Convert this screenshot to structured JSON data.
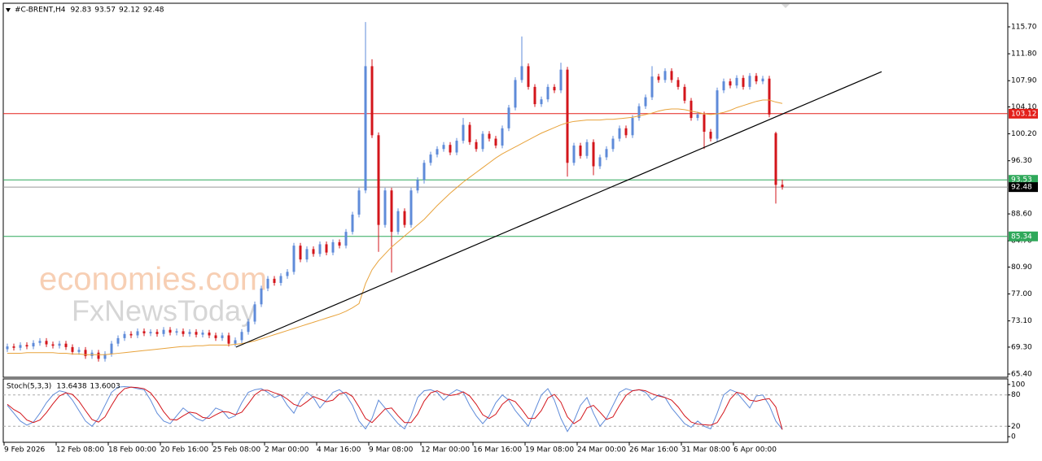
{
  "chart_data": [
    {
      "type": "candlestick",
      "title": "#C-BRENT,H4",
      "header_values": [
        92.83,
        93.57,
        92.12,
        92.48
      ],
      "categories": [
        "9 Feb 2026",
        null,
        null,
        null,
        null,
        null,
        null,
        null,
        "12 Feb 08:00",
        null,
        null,
        null,
        null,
        null,
        null,
        null,
        "18 Feb 00:00",
        null,
        null,
        null,
        null,
        null,
        null,
        null,
        "20 Feb 16:00",
        null,
        null,
        null,
        null,
        null,
        null,
        null,
        "25 Feb 08:00",
        null,
        null,
        null,
        null,
        null,
        null,
        null,
        "2 Mar 00:00",
        null,
        null,
        null,
        null,
        null,
        null,
        null,
        "4 Mar 16:00",
        null,
        null,
        null,
        null,
        null,
        null,
        null,
        "9 Mar 08:00",
        null,
        null,
        null,
        null,
        null,
        null,
        null,
        "12 Mar 00:00",
        null,
        null,
        null,
        null,
        null,
        null,
        null,
        "16 Mar 16:00",
        null,
        null,
        null,
        null,
        null,
        null,
        null,
        "19 Mar 08:00",
        null,
        null,
        null,
        null,
        null,
        null,
        null,
        "24 Mar 00:00",
        null,
        null,
        null,
        null,
        null,
        null,
        null,
        "26 Mar 16:00",
        null,
        null,
        null,
        null,
        null,
        null,
        null,
        "31 Mar 08:00",
        null,
        null,
        null,
        null,
        null,
        null,
        null,
        "6 Apr 00:00",
        null,
        null,
        null,
        null,
        null,
        null,
        null
      ],
      "open": [
        69.0,
        69.4,
        69.2,
        69.6,
        69.4,
        69.9,
        70.2,
        69.7,
        69.5,
        69.8,
        69.3,
        68.6,
        68.9,
        68.0,
        68.5,
        67.6,
        68.3,
        69.8,
        70.6,
        71.2,
        71.0,
        71.6,
        71.3,
        71.5,
        71.2,
        71.8,
        71.4,
        71.6,
        71.2,
        71.5,
        71.1,
        71.4,
        71.0,
        70.6,
        71.0,
        69.8,
        70.3,
        71.5,
        73.0,
        75.5,
        77.8,
        79.2,
        78.6,
        79.6,
        80.2,
        84.0,
        82.0,
        83.5,
        82.8,
        84.2,
        83.0,
        84.5,
        84.0,
        86.0,
        88.5,
        92.0,
        110.0,
        100.0,
        87.0,
        92.0,
        86.0,
        89.0,
        87.0,
        92.0,
        93.5,
        96.0,
        97.2,
        98.0,
        98.6,
        97.5,
        99.2,
        101.5,
        99.0,
        98.0,
        100.2,
        99.5,
        98.5,
        101.0,
        104.0,
        108.0,
        110.0,
        107.0,
        104.5,
        105.2,
        107.0,
        106.5,
        109.5,
        96.0,
        98.5,
        97.0,
        99.0,
        95.5,
        96.8,
        98.0,
        99.5,
        101.0,
        100.0,
        102.5,
        104.2,
        105.5,
        108.5,
        108.0,
        109.3,
        108.0,
        107.0,
        105.0,
        102.5,
        103.0,
        100.5,
        99.5,
        106.5,
        107.8,
        107.2,
        108.3,
        107.0,
        108.6,
        107.8,
        108.2,
        100.3,
        92.83
      ],
      "high": [
        69.8,
        69.8,
        70.0,
        70.0,
        70.3,
        70.6,
        70.6,
        70.1,
        70.2,
        70.2,
        69.7,
        69.3,
        69.3,
        68.9,
        68.9,
        68.7,
        70.2,
        71.0,
        71.6,
        71.6,
        72.0,
        72.0,
        71.9,
        71.9,
        72.2,
        72.2,
        72.0,
        72.0,
        71.9,
        71.9,
        71.8,
        71.8,
        71.4,
        71.4,
        71.4,
        70.7,
        71.9,
        73.4,
        75.9,
        78.2,
        79.6,
        79.6,
        80.0,
        80.6,
        84.4,
        84.4,
        83.9,
        83.9,
        84.6,
        84.6,
        84.9,
        84.9,
        86.4,
        88.9,
        92.4,
        116.4,
        111.0,
        100.4,
        92.4,
        92.4,
        89.4,
        89.4,
        92.4,
        93.9,
        96.4,
        97.6,
        98.4,
        99.0,
        99.0,
        99.6,
        102.5,
        101.9,
        99.4,
        100.6,
        100.6,
        99.9,
        101.4,
        104.4,
        108.4,
        114.3,
        110.4,
        107.4,
        105.6,
        107.4,
        107.4,
        110.5,
        109.9,
        98.9,
        98.9,
        99.4,
        99.4,
        97.2,
        98.4,
        99.9,
        101.4,
        101.4,
        102.9,
        104.6,
        105.9,
        110.0,
        108.9,
        109.7,
        109.7,
        108.4,
        107.4,
        105.4,
        103.4,
        103.4,
        100.9,
        106.9,
        108.2,
        108.2,
        108.7,
        108.7,
        109.0,
        109.0,
        108.6,
        108.6,
        100.5,
        93.57
      ],
      "low": [
        68.6,
        68.8,
        68.8,
        69.0,
        69.0,
        69.5,
        69.3,
        69.1,
        69.1,
        68.9,
        68.2,
        68.2,
        67.6,
        67.6,
        67.2,
        67.2,
        67.9,
        69.4,
        70.2,
        70.6,
        70.6,
        70.9,
        70.9,
        70.8,
        70.8,
        71.0,
        71.0,
        70.8,
        70.8,
        70.7,
        70.7,
        70.6,
        70.2,
        70.2,
        69.4,
        69.4,
        69.9,
        71.1,
        72.6,
        75.1,
        77.4,
        78.2,
        78.2,
        79.2,
        79.8,
        81.6,
        81.6,
        82.4,
        82.4,
        82.6,
        82.6,
        83.6,
        83.6,
        85.6,
        88.1,
        91.6,
        99.6,
        83.1,
        86.6,
        80.1,
        85.6,
        86.6,
        86.6,
        91.6,
        93.0,
        95.6,
        96.8,
        97.6,
        97.1,
        97.1,
        98.8,
        98.6,
        97.6,
        97.6,
        99.1,
        98.1,
        98.1,
        100.6,
        103.6,
        107.6,
        106.6,
        104.1,
        104.1,
        104.8,
        106.1,
        106.1,
        94.0,
        95.6,
        96.6,
        96.6,
        94.2,
        95.1,
        96.4,
        97.6,
        99.1,
        99.6,
        99.6,
        102.1,
        103.8,
        105.1,
        107.6,
        107.6,
        107.6,
        106.6,
        104.6,
        102.1,
        102.1,
        98.0,
        99.1,
        99.1,
        106.1,
        106.8,
        106.8,
        106.6,
        106.6,
        107.4,
        107.4,
        102.6,
        90.1,
        92.12
      ],
      "close": [
        69.4,
        69.2,
        69.6,
        69.4,
        69.9,
        70.2,
        69.7,
        69.5,
        69.8,
        69.3,
        68.6,
        68.9,
        68.0,
        68.5,
        67.6,
        68.3,
        69.8,
        70.6,
        71.2,
        71.0,
        71.6,
        71.3,
        71.5,
        71.2,
        71.8,
        71.4,
        71.6,
        71.2,
        71.5,
        71.1,
        71.4,
        71.0,
        70.6,
        71.0,
        69.8,
        70.3,
        71.5,
        73.0,
        75.5,
        77.8,
        79.2,
        78.6,
        79.6,
        80.2,
        84.0,
        82.0,
        83.5,
        82.8,
        84.2,
        83.0,
        84.5,
        84.0,
        86.0,
        88.5,
        92.0,
        110.0,
        100.0,
        87.0,
        92.0,
        86.0,
        89.0,
        87.0,
        92.0,
        93.5,
        96.0,
        97.2,
        98.0,
        98.6,
        97.5,
        99.2,
        101.5,
        99.0,
        98.0,
        100.2,
        99.5,
        98.5,
        101.0,
        104.0,
        108.0,
        110.0,
        107.0,
        104.5,
        105.2,
        107.0,
        106.5,
        109.5,
        96.0,
        98.5,
        97.0,
        99.0,
        95.5,
        96.8,
        98.0,
        99.5,
        101.0,
        100.0,
        102.5,
        104.2,
        105.5,
        108.5,
        108.0,
        109.3,
        108.0,
        107.0,
        105.0,
        102.5,
        103.0,
        100.5,
        99.5,
        106.5,
        107.8,
        107.2,
        108.3,
        107.0,
        108.6,
        107.8,
        108.2,
        103.0,
        92.8,
        92.48
      ],
      "up_color": "#5f8bd9",
      "down_color": "#d3151b",
      "moving_average": {
        "color": "#e8a33c",
        "values": [
          68.4,
          68.4,
          68.4,
          68.5,
          68.5,
          68.5,
          68.5,
          68.5,
          68.4,
          68.4,
          68.3,
          68.3,
          68.2,
          68.2,
          68.2,
          68.2,
          68.3,
          68.4,
          68.5,
          68.6,
          68.7,
          68.8,
          68.9,
          69.0,
          69.1,
          69.2,
          69.3,
          69.4,
          69.4,
          69.5,
          69.5,
          69.6,
          69.6,
          69.6,
          69.6,
          69.7,
          69.8,
          70.0,
          70.2,
          70.5,
          70.8,
          71.1,
          71.4,
          71.7,
          72.0,
          72.3,
          72.6,
          72.9,
          73.2,
          73.5,
          73.8,
          74.1,
          74.5,
          75.0,
          75.6,
          78.5,
          80.5,
          81.8,
          82.8,
          83.8,
          84.6,
          85.4,
          86.2,
          87.0,
          87.8,
          88.8,
          89.8,
          90.7,
          91.6,
          92.4,
          93.2,
          93.9,
          94.6,
          95.3,
          96.0,
          96.7,
          97.3,
          97.8,
          98.3,
          98.8,
          99.3,
          99.8,
          100.3,
          100.7,
          101.1,
          101.5,
          101.8,
          102.0,
          102.1,
          102.2,
          102.2,
          102.2,
          102.3,
          102.3,
          102.4,
          102.5,
          102.6,
          102.8,
          103.0,
          103.2,
          103.5,
          103.7,
          103.8,
          103.8,
          103.7,
          103.5,
          103.3,
          103.1,
          103.0,
          103.1,
          103.3,
          103.6,
          104.0,
          104.3,
          104.6,
          104.9,
          105.1,
          105.1,
          104.8,
          104.6
        ]
      },
      "trendline": {
        "color": "#000000",
        "x": [
          35.1,
          134.25
        ],
        "y": [
          69.29,
          109.2
        ]
      },
      "levels": [
        {
          "value": 103.12,
          "color": "#e3201b"
        },
        {
          "value": 93.53,
          "color": "#2fa85a"
        },
        {
          "value": 85.34,
          "color": "#2fa85a"
        },
        {
          "value": 92.48,
          "color": "#9a9a9a",
          "label_color": "#000000"
        }
      ],
      "ylim": [
        65.05,
        119.0
      ],
      "yticks": [
        {
          "value": 115.7,
          "label": "115.70"
        },
        {
          "value": 111.8,
          "label": "111.80"
        },
        {
          "value": 107.9,
          "label": "107.90"
        },
        {
          "value": 104.1,
          "label": "104.10"
        },
        {
          "value": 100.2,
          "label": "100.20"
        },
        {
          "value": 96.3,
          "label": "96.30"
        },
        {
          "value": 88.6,
          "label": "88.60"
        },
        {
          "value": 84.7,
          "label": "84.70"
        },
        {
          "value": 80.9,
          "label": "80.90"
        },
        {
          "value": 77,
          "label": "77.00"
        },
        {
          "value": 73.1,
          "label": "73.10"
        },
        {
          "value": 69.3,
          "label": "69.30"
        },
        {
          "value": 65.4,
          "label": "65.40"
        }
      ],
      "watermark": [
        "economies.com",
        "FxNewsToday"
      ]
    },
    {
      "type": "line",
      "title": "Stoch(5,3,3)",
      "header_values": [
        13.6438,
        13.6003
      ],
      "series": [
        {
          "color": "#5f8bd9",
          "values": [
            60,
            45,
            30,
            22,
            28,
            45,
            65,
            80,
            88,
            85,
            70,
            50,
            30,
            20,
            35,
            60,
            85,
            95,
            96,
            95,
            92,
            90,
            70,
            45,
            30,
            25,
            40,
            55,
            45,
            35,
            30,
            40,
            55,
            50,
            35,
            40,
            65,
            85,
            90,
            92,
            85,
            75,
            80,
            60,
            45,
            70,
            85,
            75,
            55,
            70,
            85,
            90,
            80,
            60,
            30,
            15,
            35,
            70,
            55,
            40,
            25,
            15,
            40,
            75,
            88,
            90,
            85,
            70,
            82,
            90,
            85,
            60,
            40,
            25,
            40,
            65,
            80,
            70,
            50,
            35,
            20,
            50,
            80,
            92,
            70,
            35,
            10,
            30,
            60,
            75,
            45,
            20,
            35,
            60,
            85,
            92,
            88,
            90,
            85,
            70,
            80,
            75,
            55,
            40,
            25,
            18,
            30,
            20,
            15,
            45,
            80,
            90,
            85,
            70,
            55,
            78,
            80,
            60,
            30,
            13.6438
          ]
        },
        {
          "color": "#d3151b",
          "values": [
            62,
            52,
            45,
            32,
            27,
            32,
            46,
            63,
            78,
            84,
            81,
            68,
            50,
            33,
            28,
            38,
            60,
            80,
            92,
            95,
            94,
            92,
            84,
            68,
            48,
            33,
            32,
            40,
            47,
            45,
            37,
            35,
            42,
            48,
            47,
            42,
            47,
            63,
            80,
            89,
            89,
            84,
            80,
            72,
            62,
            58,
            67,
            77,
            72,
            67,
            70,
            82,
            85,
            77,
            57,
            35,
            27,
            40,
            53,
            55,
            40,
            27,
            27,
            43,
            68,
            84,
            88,
            82,
            79,
            81,
            86,
            78,
            62,
            42,
            35,
            43,
            62,
            72,
            67,
            52,
            35,
            35,
            50,
            74,
            81,
            66,
            38,
            25,
            33,
            55,
            60,
            47,
            33,
            38,
            60,
            79,
            88,
            90,
            88,
            82,
            78,
            75,
            70,
            57,
            40,
            28,
            24,
            23,
            22,
            27,
            47,
            72,
            85,
            82,
            70,
            68,
            71,
            73,
            57,
            13.6003
          ]
        }
      ],
      "levels": [
        80,
        20
      ],
      "ylim": [
        -9.2,
        109.2
      ],
      "yticks": [
        0,
        20,
        80,
        100
      ]
    }
  ]
}
